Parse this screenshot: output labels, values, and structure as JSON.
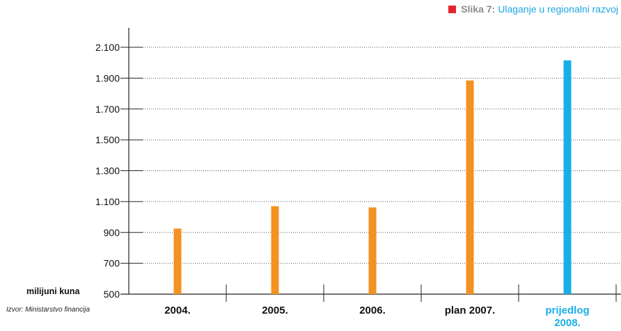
{
  "title": {
    "prefix": "Slika 7:",
    "text": "Ulaganje u regionalni razvoj"
  },
  "unit_label": "milijuni kuna",
  "source": "Izvor: Ministarstvo financija",
  "colors": {
    "title_marker": "#e4262c",
    "title_prefix": "#8c8c8c",
    "title_text": "#1ea7e1",
    "bar_default": "#f39122",
    "bar_highlight": "#18aee8",
    "highlight_label": "#18aee8",
    "axis": "#222222",
    "grid": "#555555"
  },
  "chart_data": {
    "type": "bar",
    "title": "Ulaganje u regionalni razvoj",
    "ylabel": "milijuni kuna",
    "xlabel": "",
    "categories": [
      "2004.",
      "2005.",
      "2006.",
      "plan 2007.",
      "prijedlog 2008."
    ],
    "values": [
      925,
      1070,
      1062,
      1885,
      2015
    ],
    "highlight": [
      false,
      false,
      false,
      false,
      true
    ],
    "ylim": [
      500,
      2200
    ],
    "yticks": [
      500,
      700,
      900,
      1100,
      1300,
      1500,
      1700,
      1900,
      2100
    ],
    "ytick_labels": [
      "500",
      "700",
      "900",
      "1.100",
      "1.300",
      "1.500",
      "1.700",
      "1.900",
      "2.100"
    ],
    "grid": true,
    "grid_style": "dotted"
  }
}
